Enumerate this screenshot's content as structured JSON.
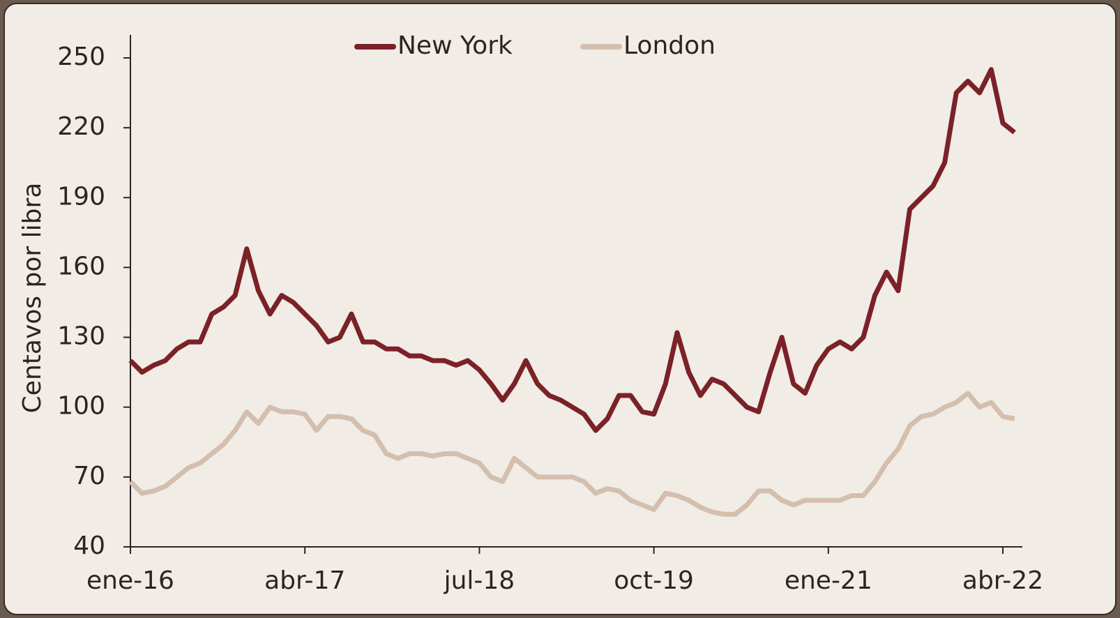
{
  "chart_data": {
    "type": "line",
    "y_label": "Centavos por libra",
    "categories": [
      "ene-16",
      null,
      null,
      null,
      null,
      null,
      null,
      null,
      null,
      null,
      null,
      null,
      null,
      null,
      null,
      "abr-17",
      null,
      null,
      null,
      null,
      null,
      null,
      null,
      null,
      null,
      null,
      null,
      null,
      null,
      null,
      "jul-18",
      null,
      null,
      null,
      null,
      null,
      null,
      null,
      null,
      null,
      null,
      null,
      null,
      null,
      null,
      "oct-19",
      null,
      null,
      null,
      null,
      null,
      null,
      null,
      null,
      null,
      null,
      null,
      null,
      null,
      null,
      "ene-21",
      null,
      null,
      null,
      null,
      null,
      null,
      null,
      null,
      null,
      null,
      null,
      null,
      null,
      null,
      "abr-22",
      null
    ],
    "series": [
      {
        "name": "New York",
        "color": "#7b2128",
        "values": [
          120,
          115,
          118,
          120,
          125,
          128,
          128,
          140,
          143,
          148,
          168,
          150,
          140,
          148,
          145,
          140,
          135,
          128,
          130,
          140,
          128,
          128,
          125,
          125,
          122,
          122,
          120,
          120,
          118,
          120,
          116,
          110,
          103,
          110,
          120,
          110,
          105,
          103,
          100,
          97,
          90,
          95,
          105,
          105,
          98,
          97,
          110,
          132,
          115,
          105,
          112,
          110,
          105,
          100,
          98,
          115,
          130,
          110,
          106,
          118,
          125,
          128,
          125,
          130,
          148,
          158,
          150,
          185,
          190,
          195,
          205,
          235,
          240,
          235,
          245,
          222,
          218
        ]
      },
      {
        "name": "London",
        "color": "#d4bfae",
        "values": [
          68,
          63,
          64,
          66,
          70,
          74,
          76,
          80,
          84,
          90,
          98,
          93,
          100,
          98,
          98,
          97,
          90,
          96,
          96,
          95,
          90,
          88,
          80,
          78,
          80,
          80,
          79,
          80,
          80,
          78,
          76,
          70,
          68,
          78,
          74,
          70,
          70,
          70,
          70,
          68,
          63,
          65,
          64,
          60,
          58,
          56,
          63,
          62,
          60,
          57,
          55,
          54,
          54,
          58,
          64,
          64,
          60,
          58,
          60,
          60,
          60,
          60,
          62,
          62,
          68,
          76,
          82,
          92,
          96,
          97,
          100,
          102,
          106,
          100,
          102,
          96,
          95
        ]
      }
    ],
    "ylim": [
      40,
      260
    ],
    "yticks": [
      40,
      70,
      100,
      130,
      160,
      190,
      220,
      250
    ],
    "legend": "top"
  }
}
